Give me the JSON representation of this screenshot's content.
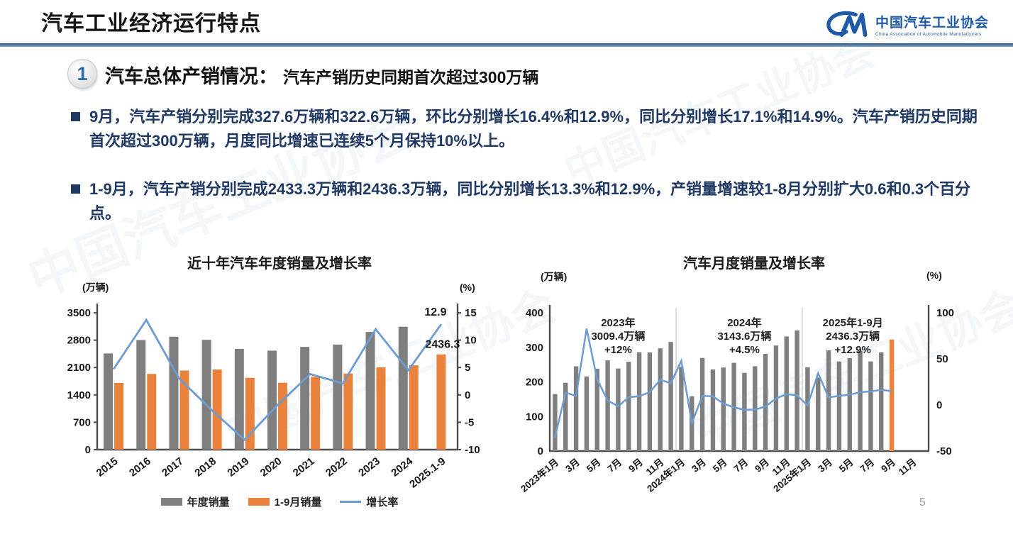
{
  "page": {
    "title": "汽车工业经济运行特点",
    "page_number": "5"
  },
  "logo": {
    "name_cn": "中国汽车工业协会",
    "name_en": "China Association of Automobile Manufacturers"
  },
  "section": {
    "number": "1",
    "heading": "汽车总体产销情况：",
    "subheading": "汽车产销历史同期首次超过300万辆"
  },
  "bullets": [
    "9月，汽车产销分别完成327.6万辆和322.6万辆，环比分别增长16.4%和12.9%，同比分别增长17.1%和14.9%。汽车产销历史同期首次超过300万辆，月度同比增速已连续5个月保持10%以上。",
    "1-9月，汽车产销分别完成2433.3万辆和2436.3万辆，同比分别增长13.3%和12.9%，产销量增速较1-8月分别扩大0.6和0.3个百分点。"
  ],
  "colors": {
    "bar_gray": "#7F7F7F",
    "bar_orange": "#E8823C",
    "line_blue": "#6C9CD2",
    "bullet_navy": "#1F3864",
    "accent_blue": "#2E6DA4",
    "divider_blue": "#2B5687"
  },
  "chart_data": [
    {
      "type": "bar",
      "title": "近十年汽车年度销量及增长率",
      "left_axis_label": "(万辆)",
      "right_axis_label": "(%)",
      "categories": [
        "2015",
        "2016",
        "2017",
        "2018",
        "2019",
        "2020",
        "2021",
        "2022",
        "2023",
        "2024",
        "2025.1-9"
      ],
      "series": [
        {
          "name": "年度销量",
          "kind": "bar",
          "axis": "left",
          "color": "#7F7F7F",
          "values": [
            2459.8,
            2802.8,
            2887.9,
            2808.1,
            2576.9,
            2531.1,
            2627.5,
            2686.4,
            3009.4,
            3143.6,
            null
          ]
        },
        {
          "name": "1-9月销量",
          "kind": "bar",
          "axis": "left",
          "color": "#E8823C",
          "values": [
            1705.3,
            1936.0,
            2022.5,
            2049.1,
            1837.1,
            1711.6,
            1862.3,
            1947.0,
            2106.9,
            2157.1,
            2436.3
          ]
        },
        {
          "name": "增长率",
          "kind": "line",
          "axis": "right",
          "color": "#6C9CD2",
          "values": [
            4.7,
            13.7,
            3.0,
            -2.8,
            -8.2,
            -1.9,
            3.8,
            2.1,
            12.0,
            4.5,
            12.9
          ]
        }
      ],
      "left_axis": {
        "min": 0,
        "max": 3500,
        "ticks": [
          0,
          700,
          1400,
          2100,
          2800,
          3500
        ]
      },
      "right_axis": {
        "min": -10,
        "max": 15,
        "ticks": [
          -10,
          -5,
          0,
          5,
          10,
          15
        ]
      },
      "annotations": [
        {
          "text": "12.9",
          "target": "line-end"
        },
        {
          "text": "2436.3",
          "target": "last-bar"
        }
      ],
      "legend": [
        "年度销量",
        "1-9月销量",
        "增长率"
      ],
      "legend_position": "bottom",
      "grid": false
    },
    {
      "type": "bar",
      "title": "汽车月度销量及增长率",
      "left_axis_label": "(万辆)",
      "right_axis_label": "(%)",
      "slots_total": 36,
      "x_tick_labels": [
        "2023年1月",
        "3月",
        "5月",
        "7月",
        "9月",
        "11月",
        "2024年1月",
        "3月",
        "5月",
        "7月",
        "9月",
        "11月",
        "2025年1月",
        "3月",
        "5月",
        "7月",
        "9月",
        "11月"
      ],
      "x_tick_slots": [
        0,
        2,
        4,
        6,
        8,
        10,
        12,
        14,
        16,
        18,
        20,
        22,
        24,
        26,
        28,
        30,
        32,
        34
      ],
      "series": [
        {
          "name": "月度销量",
          "kind": "bar",
          "axis": "left",
          "color": "#7F7F7F",
          "last_bar_color": "#E8823C",
          "values": [
            164.9,
            197.6,
            245.1,
            215.9,
            238.2,
            262.2,
            238.8,
            258.2,
            285.8,
            285.3,
            297.0,
            315.6,
            243.9,
            158.4,
            269.4,
            235.9,
            241.7,
            255.2,
            226.2,
            245.3,
            280.9,
            305.3,
            331.6,
            348.9,
            242.3,
            212.9,
            291.5,
            259.0,
            268.6,
            290.4,
            259.3,
            285.7,
            322.6
          ]
        },
        {
          "name": "增长率",
          "kind": "line",
          "axis": "right",
          "color": "#6C9CD2",
          "values": [
            -35.0,
            13.5,
            9.7,
            82.7,
            27.9,
            4.8,
            -1.4,
            8.4,
            9.5,
            13.8,
            27.4,
            23.5,
            47.9,
            -19.9,
            9.9,
            9.3,
            1.5,
            -2.7,
            -5.2,
            -5.0,
            -1.7,
            7.0,
            11.7,
            10.5,
            -0.6,
            34.4,
            8.2,
            9.8,
            11.2,
            13.8,
            14.7,
            16.4,
            14.9
          ]
        }
      ],
      "left_axis": {
        "min": 0,
        "max": 400,
        "ticks": [
          0,
          100,
          200,
          300,
          400
        ]
      },
      "right_axis": {
        "min": -50,
        "max": 100,
        "ticks": [
          -50,
          0,
          50,
          100
        ]
      },
      "separators_after_slot": [
        12,
        24
      ],
      "annotations": [
        {
          "lines": [
            "2023年",
            "3009.4万辆",
            "+12%"
          ],
          "slot": 6
        },
        {
          "lines": [
            "2024年",
            "3143.6万辆",
            "+4.5%"
          ],
          "slot": 18
        },
        {
          "lines": [
            "2025年1-9月",
            "2436.3万辆",
            "+12.9%"
          ],
          "slot": 28.3
        }
      ],
      "grid": false
    }
  ]
}
